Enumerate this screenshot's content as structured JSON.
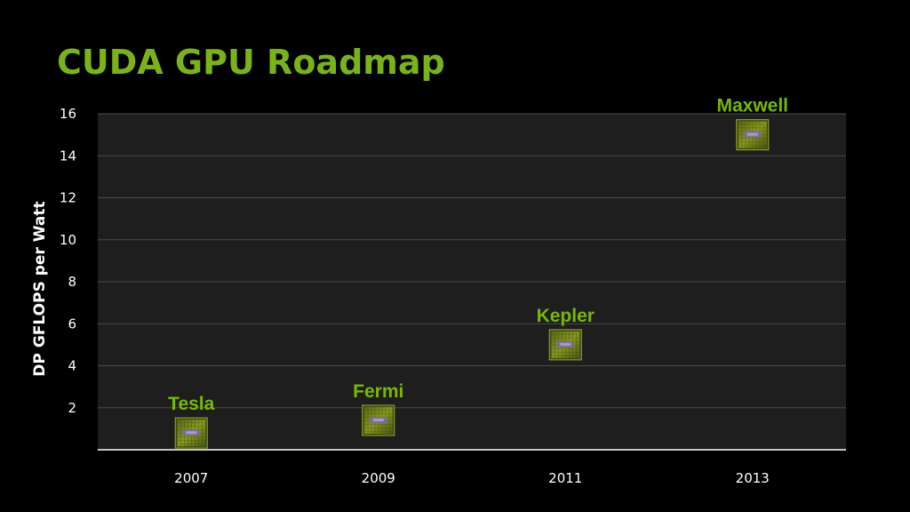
{
  "slide": {
    "title": "CUDA GPU Roadmap"
  },
  "colors": {
    "title": "#7ab317",
    "accent": "#76b900",
    "plot_background": "#1e1e1e",
    "gridline": "#4a4a4a",
    "text": "#ffffff"
  },
  "chart_data": {
    "type": "scatter",
    "title": "CUDA GPU Roadmap",
    "xlabel": "",
    "ylabel": "DP GFLOPS per Watt",
    "x_categories": [
      "2007",
      "2009",
      "2011",
      "2013"
    ],
    "y_ticks": [
      2,
      4,
      6,
      8,
      10,
      12,
      14,
      16
    ],
    "ylim": [
      0,
      16
    ],
    "grid": true,
    "marker": "gpu-chip-icon",
    "points": [
      {
        "x": "2007",
        "y": 0.8,
        "label": "Tesla"
      },
      {
        "x": "2009",
        "y": 1.4,
        "label": "Fermi"
      },
      {
        "x": "2011",
        "y": 5.0,
        "label": "Kepler"
      },
      {
        "x": "2013",
        "y": 15.0,
        "label": "Maxwell"
      }
    ]
  }
}
